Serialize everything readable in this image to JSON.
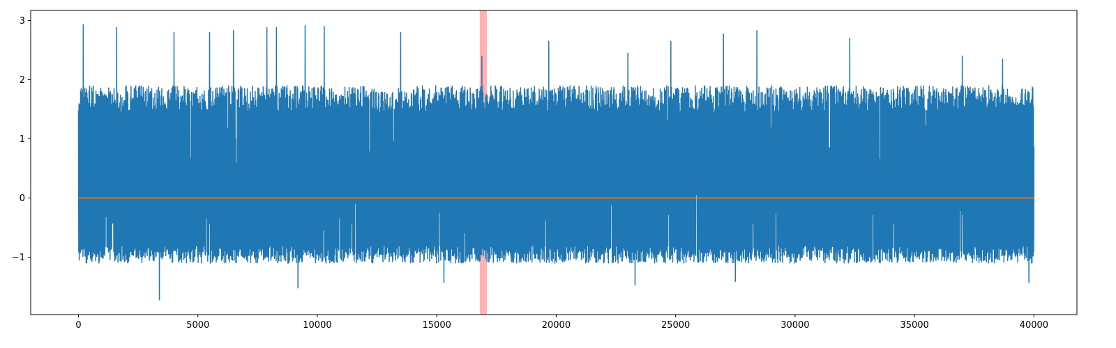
{
  "chart_data": {
    "type": "line",
    "title": "",
    "xlabel": "",
    "ylabel": "",
    "xlim": [
      -2000,
      41800
    ],
    "ylim": [
      -1.97,
      3.17
    ],
    "x_ticks": [
      0,
      5000,
      10000,
      15000,
      20000,
      25000,
      30000,
      35000,
      40000
    ],
    "x_tick_labels": [
      "0",
      "5000",
      "10000",
      "15000",
      "20000",
      "25000",
      "30000",
      "35000",
      "40000"
    ],
    "y_ticks": [
      -1,
      0,
      1,
      2,
      3
    ],
    "y_tick_labels": [
      "−1",
      "0",
      "1",
      "2",
      "3"
    ],
    "grid": false,
    "series": [
      {
        "color": "#1f77b4",
        "x_range": [
          0,
          40000
        ],
        "typical_range": [
          -1.0,
          1.9
        ],
        "observed_min": -1.72,
        "observed_max": 2.93,
        "peaks": [
          {
            "x": 200,
            "y": 2.93
          },
          {
            "x": 1600,
            "y": 2.88
          },
          {
            "x": 3400,
            "y": -1.72
          },
          {
            "x": 4000,
            "y": 2.8
          },
          {
            "x": 5500,
            "y": 2.8
          },
          {
            "x": 6500,
            "y": 2.83
          },
          {
            "x": 7900,
            "y": 2.88
          },
          {
            "x": 8300,
            "y": 2.88
          },
          {
            "x": 9200,
            "y": -1.52
          },
          {
            "x": 9500,
            "y": 2.91
          },
          {
            "x": 10300,
            "y": 2.9
          },
          {
            "x": 13500,
            "y": 2.8
          },
          {
            "x": 15300,
            "y": -1.43
          },
          {
            "x": 16900,
            "y": 2.4
          },
          {
            "x": 19700,
            "y": 2.65
          },
          {
            "x": 23000,
            "y": 2.45
          },
          {
            "x": 23300,
            "y": -1.47
          },
          {
            "x": 24800,
            "y": 2.65
          },
          {
            "x": 27000,
            "y": 2.77
          },
          {
            "x": 27500,
            "y": -1.41
          },
          {
            "x": 28400,
            "y": 2.83
          },
          {
            "x": 32300,
            "y": 2.7
          },
          {
            "x": 37000,
            "y": 2.4
          },
          {
            "x": 38700,
            "y": 2.35
          },
          {
            "x": 39800,
            "y": -1.43
          }
        ]
      },
      {
        "color": "#ff7f0e",
        "x": [
          0,
          40000
        ],
        "y": [
          0,
          0
        ]
      }
    ],
    "highlight_region": {
      "x": [
        16800,
        17100
      ],
      "color": "#ff0000",
      "alpha": 0.3
    }
  }
}
